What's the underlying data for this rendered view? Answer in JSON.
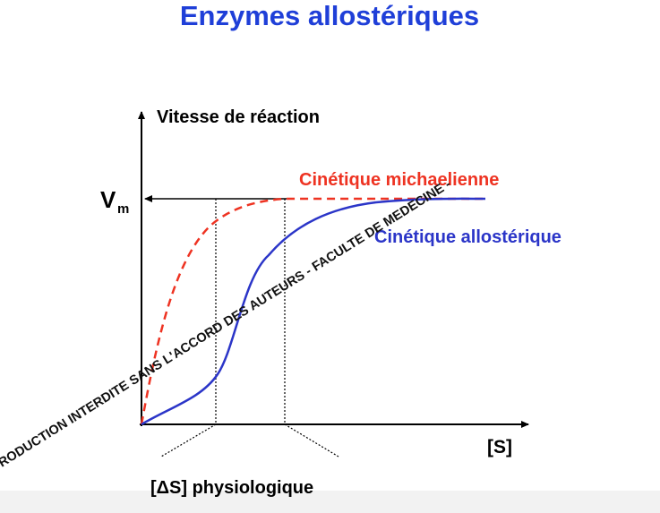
{
  "title": "Enzymes allostériques",
  "y_axis_label": "Vitesse de réaction",
  "vm": {
    "main": "V",
    "sub": "m"
  },
  "curves": {
    "michaelis": "Cinétique michaelienne",
    "allosteric": "Cinétique allostérique"
  },
  "x_axis_label": "[S]",
  "range_label": "[ΔS] physiologique",
  "watermark": "RODUCTION INTERDITE SANS L'ACCORD DES AUTEURS - FACULTE DE MEDECINE -"
}
